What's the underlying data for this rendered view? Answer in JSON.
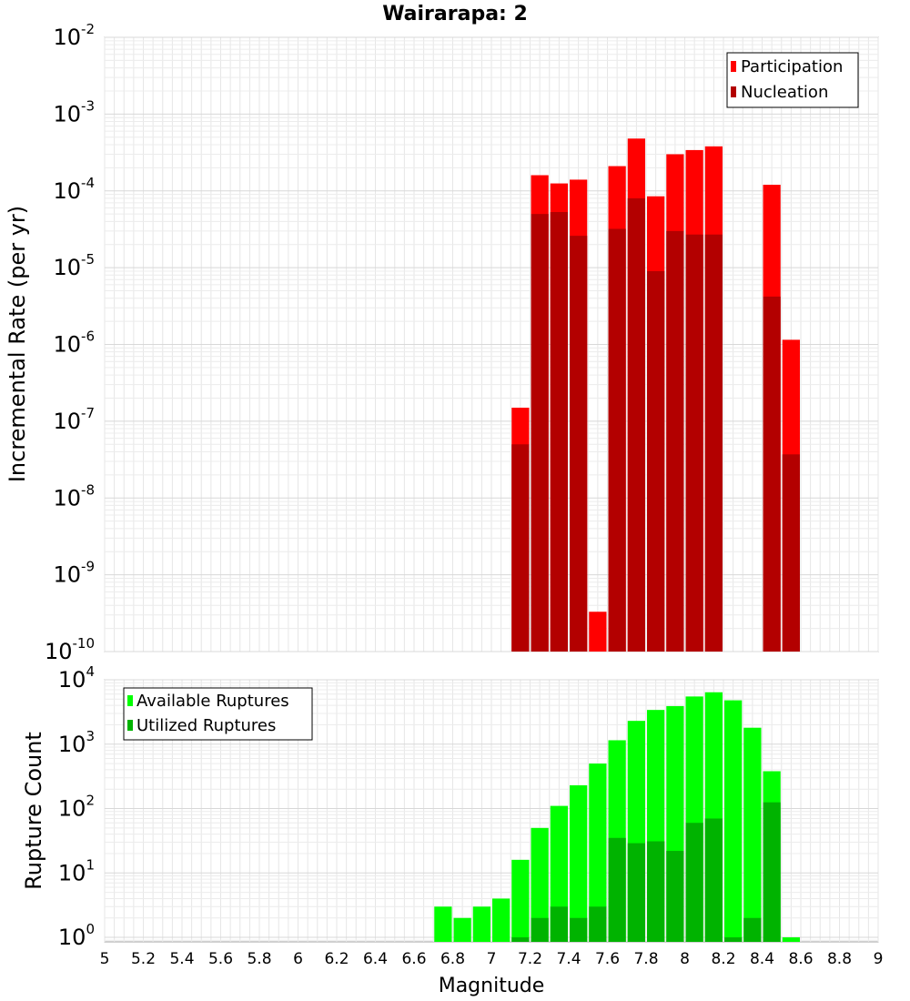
{
  "chart_data": {
    "title": "Wairarapa: 2",
    "xlabel": "Magnitude",
    "xlim": [
      5,
      9
    ],
    "x_ticks": [
      "5",
      "5.2",
      "5.4",
      "5.6",
      "5.8",
      "6",
      "6.2",
      "6.4",
      "6.6",
      "6.8",
      "7",
      "7.2",
      "7.4",
      "7.6",
      "7.8",
      "8",
      "8.2",
      "8.4",
      "8.6",
      "8.8",
      "9"
    ],
    "bin_width": 0.1,
    "panels": [
      {
        "type": "bar",
        "yscale": "log",
        "ylabel": "Incremental Rate (per yr)",
        "ylim_exp": [
          -10,
          -2
        ],
        "y_ticks": [
          {
            "base": "10",
            "exp": "-2"
          },
          {
            "base": "10",
            "exp": "-3"
          },
          {
            "base": "10",
            "exp": "-4"
          },
          {
            "base": "10",
            "exp": "-5"
          },
          {
            "base": "10",
            "exp": "-6"
          },
          {
            "base": "10",
            "exp": "-7"
          },
          {
            "base": "10",
            "exp": "-8"
          },
          {
            "base": "10",
            "exp": "-9"
          },
          {
            "base": "10",
            "exp": "-10"
          }
        ],
        "legend": [
          "Participation",
          "Nucleation"
        ],
        "legend_position": "top-right",
        "series": [
          {
            "name": "Participation",
            "color": "#ff0000",
            "x": [
              7.15,
              7.25,
              7.35,
              7.45,
              7.55,
              7.65,
              7.75,
              7.85,
              7.95,
              8.05,
              8.15,
              8.45,
              8.55
            ],
            "values": [
              1.5e-07,
              0.00016,
              0.000125,
              0.00014,
              3.3e-10,
              0.00021,
              0.00048,
              8.5e-05,
              0.0003,
              0.00034,
              0.00038,
              0.00012,
              1.15e-06
            ]
          },
          {
            "name": "Nucleation",
            "color": "#b30000",
            "x": [
              7.15,
              7.25,
              7.35,
              7.45,
              7.65,
              7.75,
              7.85,
              7.95,
              8.05,
              8.15,
              8.45,
              8.55
            ],
            "values": [
              5e-08,
              5e-05,
              5.3e-05,
              2.6e-05,
              3.2e-05,
              8e-05,
              9e-06,
              3e-05,
              2.7e-05,
              2.7e-05,
              4.2e-06,
              3.7e-08
            ]
          }
        ]
      },
      {
        "type": "bar",
        "yscale": "log",
        "ylabel": "Rupture Count",
        "ylim_exp": [
          -0.07,
          4
        ],
        "y_ticks": [
          {
            "base": "10",
            "exp": "4"
          },
          {
            "base": "10",
            "exp": "3"
          },
          {
            "base": "10",
            "exp": "2"
          },
          {
            "base": "10",
            "exp": "1"
          },
          {
            "base": "10",
            "exp": "0"
          }
        ],
        "legend": [
          "Available Ruptures",
          "Utilized Ruptures"
        ],
        "legend_position": "top-left",
        "series": [
          {
            "name": "Available Ruptures",
            "color": "#00ff00",
            "x": [
              6.75,
              6.85,
              6.95,
              7.05,
              7.15,
              7.25,
              7.35,
              7.45,
              7.55,
              7.65,
              7.75,
              7.85,
              7.95,
              8.05,
              8.15,
              8.25,
              8.35,
              8.45,
              8.55
            ],
            "values": [
              3,
              2,
              3,
              4,
              16,
              50,
              110,
              230,
              500,
              1150,
              2300,
              3400,
              3900,
              5500,
              6400,
              4800,
              1800,
              380,
              1
            ]
          },
          {
            "name": "Utilized Ruptures",
            "color": "#00b300",
            "x": [
              7.15,
              7.25,
              7.35,
              7.45,
              7.55,
              7.65,
              7.75,
              7.85,
              7.95,
              8.05,
              8.15,
              8.25,
              8.35,
              8.45
            ],
            "values": [
              1,
              2,
              3,
              2,
              3,
              35,
              29,
              31,
              22,
              60,
              70,
              1,
              2,
              125
            ]
          }
        ]
      }
    ]
  }
}
